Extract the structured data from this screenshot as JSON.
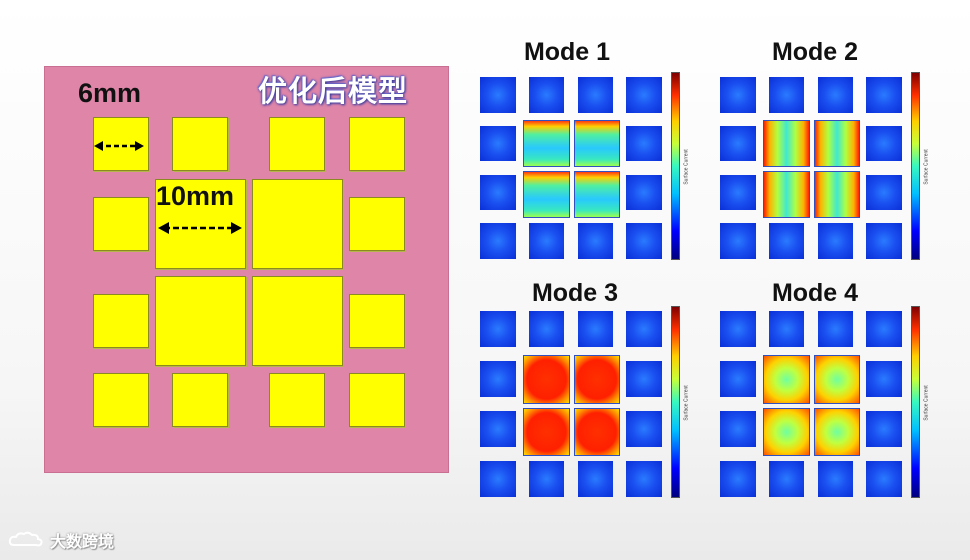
{
  "model": {
    "title": "优化后模型",
    "small_pad_label": "6mm",
    "large_pad_label": "10mm",
    "colors": {
      "substrate": "#df86a8",
      "pad": "#ffff00"
    }
  },
  "modes": [
    {
      "title": "Mode 1",
      "colorbar_label": "Surface Current"
    },
    {
      "title": "Mode 2",
      "colorbar_label": "Surface Current"
    },
    {
      "title": "Mode 3",
      "colorbar_label": "Surface Current"
    },
    {
      "title": "Mode 4",
      "colorbar_label": "Surface Current"
    }
  ],
  "watermark": {
    "text": "大数跨境",
    "logo_icon": "cloud-logo-icon"
  }
}
